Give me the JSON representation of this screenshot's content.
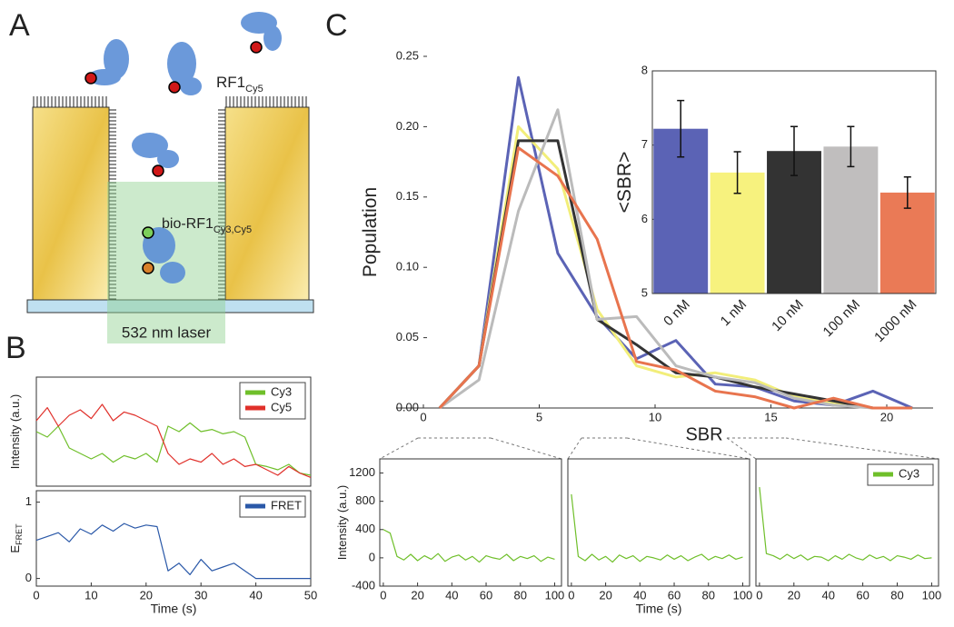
{
  "panel_labels": [
    "A",
    "B",
    "C"
  ],
  "diagram": {
    "rf1": "RF1",
    "rf1_sub": "Cy5",
    "bio": "bio-RF1",
    "bio_sub": "Cy3,Cy5",
    "laser": "532 nm laser"
  },
  "chart_data": [
    {
      "type": "line",
      "ylabel": "Intensity (a.u.)",
      "xlim": [
        0,
        50
      ],
      "ylim": [
        0,
        1
      ],
      "legend": "upper right",
      "x": [
        0,
        2,
        4,
        6,
        8,
        10,
        12,
        14,
        16,
        18,
        20,
        22,
        24,
        26,
        28,
        30,
        32,
        34,
        36,
        38,
        40,
        42,
        44,
        46,
        48,
        50
      ],
      "series": [
        {
          "name": "Cy3",
          "color": "#6fbf2a",
          "values": [
            0.5,
            0.45,
            0.55,
            0.35,
            0.3,
            0.25,
            0.3,
            0.22,
            0.28,
            0.25,
            0.3,
            0.22,
            0.55,
            0.5,
            0.58,
            0.5,
            0.52,
            0.48,
            0.5,
            0.45,
            0.2,
            0.18,
            0.15,
            0.2,
            0.12,
            0.1
          ]
        },
        {
          "name": "Cy5",
          "color": "#e0302a",
          "values": [
            0.6,
            0.72,
            0.55,
            0.65,
            0.7,
            0.62,
            0.75,
            0.6,
            0.68,
            0.65,
            0.6,
            0.55,
            0.3,
            0.2,
            0.25,
            0.22,
            0.3,
            0.2,
            0.25,
            0.18,
            0.2,
            0.15,
            0.1,
            0.18,
            0.12,
            0.08
          ]
        }
      ]
    },
    {
      "type": "line",
      "xlabel": "Time (s)",
      "ylabel": "E",
      "ylabel_sub": "FRET",
      "xlim": [
        0,
        50
      ],
      "ylim": [
        -0.1,
        1.15
      ],
      "xticks": [
        0,
        10,
        20,
        30,
        40,
        50
      ],
      "yticks": [
        0,
        1
      ],
      "legend": "upper right",
      "x": [
        0,
        2,
        4,
        6,
        8,
        10,
        12,
        14,
        16,
        18,
        20,
        22,
        24,
        26,
        28,
        30,
        32,
        34,
        36,
        38,
        40,
        42,
        44,
        46,
        48,
        50
      ],
      "series": [
        {
          "name": "FRET",
          "color": "#2a58a8",
          "values": [
            0.5,
            0.55,
            0.6,
            0.48,
            0.65,
            0.58,
            0.7,
            0.62,
            0.72,
            0.66,
            0.7,
            0.68,
            0.1,
            0.2,
            0.05,
            0.25,
            0.1,
            0.15,
            0.2,
            0.1,
            0,
            0,
            0,
            0,
            0,
            0
          ]
        }
      ]
    },
    {
      "type": "line",
      "xlabel": "SBR",
      "ylabel": "Population",
      "xlim": [
        0,
        22
      ],
      "ylim": [
        0,
        0.25
      ],
      "xticks": [
        0,
        5,
        10,
        15,
        20
      ],
      "yticks": [
        {
          "value": 0,
          "label": "0.00"
        },
        0.05,
        {
          "value": 0.1,
          "label": "0.10"
        },
        0.15,
        {
          "value": 0.2,
          "label": "0.20"
        },
        0.25
      ],
      "x": [
        0.7,
        2.4,
        4.1,
        5.8,
        7.5,
        9.2,
        10.9,
        12.6,
        14.3,
        16.0,
        17.7,
        19.4,
        21.1
      ],
      "series": [
        {
          "color": "#5b63b5",
          "values": [
            0,
            0.03,
            0.235,
            0.11,
            0.065,
            0.035,
            0.048,
            0.017,
            0.015,
            0.005,
            0.002,
            0.012,
            0
          ]
        },
        {
          "color": "#f2ee7a",
          "values": [
            0,
            0.03,
            0.2,
            0.17,
            0.07,
            0.03,
            0.022,
            0.025,
            0.02,
            0.008,
            0.003,
            0,
            0
          ]
        },
        {
          "color": "#333333",
          "values": [
            0,
            0.03,
            0.19,
            0.19,
            0.063,
            0.045,
            0.025,
            0.022,
            0.015,
            0.01,
            0.005,
            0,
            0
          ]
        },
        {
          "color": "#bbbbbb",
          "values": [
            0,
            0.02,
            0.14,
            0.212,
            0.063,
            0.065,
            0.03,
            0.022,
            0.018,
            0.007,
            0.002,
            0,
            0
          ]
        },
        {
          "color": "#e8744e",
          "values": [
            0,
            0.03,
            0.185,
            0.165,
            0.12,
            0.033,
            0.027,
            0.012,
            0.008,
            0,
            0.007,
            0,
            0
          ]
        }
      ]
    },
    {
      "type": "bar",
      "ylabel": "<SBR>",
      "ylim": [
        5,
        8
      ],
      "yticks": [
        5,
        6,
        7,
        8
      ],
      "categories": [
        "0 nM",
        "1 nM",
        "10 nM",
        "100 nM",
        "1000 nM"
      ],
      "values": [
        7.22,
        6.63,
        6.92,
        6.98,
        6.36
      ],
      "errors": [
        0.38,
        0.28,
        0.33,
        0.27,
        0.21
      ],
      "colors": [
        "#5b63b5",
        "#f7f27e",
        "#333333",
        "#c0bebe",
        "#ea7a56"
      ]
    },
    {
      "type": "line",
      "ylabel": "Intensity (a.u.)",
      "xlim": [
        -1,
        104
      ],
      "ylim": [
        -400,
        1400
      ],
      "xticks": [
        0,
        20,
        40,
        60,
        80,
        100
      ],
      "yticks": [
        -400,
        0,
        400,
        800,
        1200
      ],
      "x": [
        0,
        4,
        8,
        12,
        16,
        20,
        24,
        28,
        32,
        36,
        40,
        44,
        48,
        52,
        56,
        60,
        64,
        68,
        72,
        76,
        80,
        84,
        88,
        92,
        96,
        100
      ],
      "series": [
        {
          "color": "#6fbf2a",
          "values": [
            400,
            350,
            20,
            -30,
            50,
            -40,
            30,
            -20,
            60,
            -50,
            10,
            40,
            -30,
            20,
            -60,
            30,
            0,
            -20,
            50,
            -40,
            20,
            -10,
            30,
            -50,
            10,
            -20
          ]
        }
      ]
    },
    {
      "type": "line",
      "xlabel": "Time (s)",
      "xlim": [
        -1,
        104
      ],
      "ylim": [
        -400,
        1400
      ],
      "xticks": [
        0,
        20,
        40,
        60,
        80,
        100
      ],
      "x": [
        0,
        4,
        8,
        12,
        16,
        20,
        24,
        28,
        32,
        36,
        40,
        44,
        48,
        52,
        56,
        60,
        64,
        68,
        72,
        76,
        80,
        84,
        88,
        92,
        96,
        100
      ],
      "series": [
        {
          "color": "#6fbf2a",
          "values": [
            900,
            20,
            -40,
            50,
            -30,
            20,
            -60,
            40,
            -10,
            30,
            -50,
            20,
            0,
            -30,
            40,
            -20,
            30,
            -40,
            10,
            50,
            -30,
            20,
            -10,
            40,
            -20,
            10
          ]
        }
      ]
    },
    {
      "type": "line",
      "xlim": [
        -1,
        104
      ],
      "ylim": [
        -400,
        1400
      ],
      "legend": "upper right",
      "xticks": [
        0,
        20,
        40,
        60,
        80,
        100
      ],
      "x": [
        0,
        4,
        8,
        12,
        16,
        20,
        24,
        28,
        32,
        36,
        40,
        44,
        48,
        52,
        56,
        60,
        64,
        68,
        72,
        76,
        80,
        84,
        88,
        92,
        96,
        100
      ],
      "series": [
        {
          "name": "Cy3",
          "color": "#6fbf2a",
          "values": [
            1000,
            60,
            30,
            -20,
            50,
            -10,
            40,
            -30,
            20,
            10,
            -40,
            30,
            -20,
            50,
            0,
            -30,
            40,
            -10,
            20,
            -40,
            30,
            10,
            -20,
            40,
            -10,
            0
          ]
        }
      ]
    }
  ]
}
